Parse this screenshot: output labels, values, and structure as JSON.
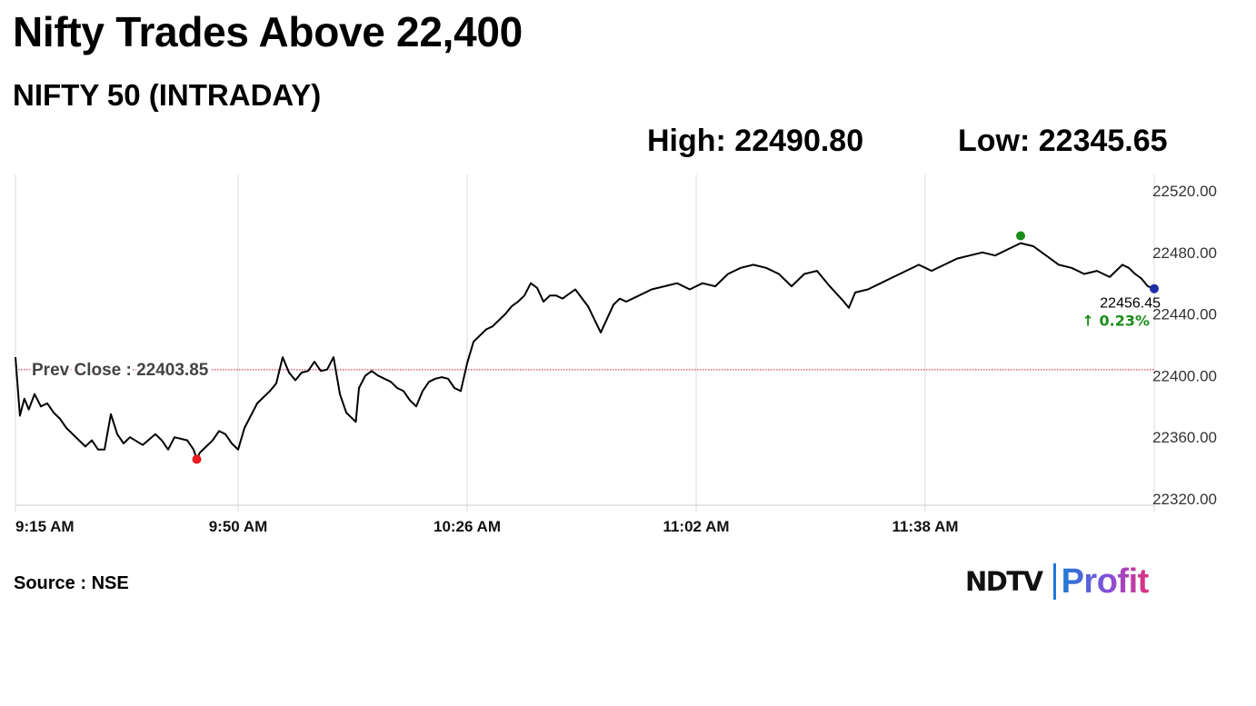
{
  "header": {
    "headline": "Nifty Trades Above 22,400",
    "subtitle": "NIFTY 50 (INTRADAY)",
    "high_text": "High: 22490.80",
    "low_text": "Low: 22345.65"
  },
  "footer": {
    "source_text": "Source : NSE",
    "brand_primary": "NDTV",
    "brand_secondary": "Profit"
  },
  "colors": {
    "line": "#000000",
    "high_marker": "#1a8c1a",
    "low_marker": "#e81c1c",
    "last_marker": "#1f2ca8",
    "change_text": "#1a8c1a",
    "prev_close_line": "#c8102e",
    "grid": "#dddddd"
  },
  "chart_data": {
    "type": "line",
    "title": "NIFTY 50 (INTRADAY)",
    "xlabel": "",
    "ylabel": "",
    "x_ticks": [
      "9:15 AM",
      "9:50 AM",
      "10:26 AM",
      "11:02 AM",
      "11:38 AM"
    ],
    "x_tick_minutes": [
      0,
      35,
      71,
      107,
      143
    ],
    "x_range_minutes": [
      0,
      179
    ],
    "y_ticks": [
      "22320.00",
      "22360.00",
      "22400.00",
      "22440.00",
      "22480.00",
      "22520.00"
    ],
    "ylim": [
      22320,
      22520
    ],
    "grid": "x-only",
    "prev_close": 22403.85,
    "prev_close_label": "Prev Close : 22403.85",
    "high": {
      "minute": 158,
      "value": 22490.8
    },
    "low": {
      "minute": 28.5,
      "value": 22345.65
    },
    "last": {
      "minute": 179,
      "value": 22456.45,
      "label": "22456.45",
      "change_label": "↑ 0.23%"
    },
    "series": [
      {
        "x": [
          0,
          0.7,
          1.4,
          2.1,
          3,
          4,
          5,
          6,
          7,
          8,
          9,
          10,
          11,
          12,
          13,
          14,
          15,
          16,
          17,
          18,
          20,
          22,
          23,
          24,
          25,
          27,
          28,
          28.5,
          29,
          30,
          31,
          32,
          33,
          34,
          35,
          36,
          37,
          38,
          39,
          40,
          41,
          42,
          43,
          44,
          45,
          46,
          47,
          48,
          49,
          50,
          51,
          52,
          53,
          53.5,
          54,
          55,
          56,
          57,
          58,
          59,
          60,
          61,
          62,
          63,
          64,
          65,
          66,
          67,
          68,
          69,
          70,
          71,
          72,
          73,
          74,
          75,
          76,
          77,
          78,
          79,
          80,
          81,
          82,
          83,
          84,
          85,
          86,
          88,
          90,
          92,
          94,
          95,
          96,
          98,
          100,
          102,
          104,
          106,
          108,
          110,
          112,
          114,
          116,
          118,
          120,
          122,
          124,
          126,
          128,
          130,
          131,
          132,
          134,
          136,
          138,
          140,
          142,
          144,
          146,
          148,
          150,
          152,
          154,
          156,
          158,
          160,
          162,
          164,
          166,
          168,
          170,
          172,
          174,
          175,
          176,
          177,
          178,
          179
        ],
        "y": [
          22412,
          22374,
          22385,
          22378,
          22388,
          22380,
          22382,
          22376,
          22372,
          22366,
          22362,
          22358,
          22354,
          22358,
          22352,
          22352,
          22375,
          22362,
          22356,
          22360,
          22355,
          22362,
          22358,
          22352,
          22360,
          22358,
          22352,
          22345.65,
          22350,
          22354,
          22358,
          22364,
          22362,
          22356,
          22352,
          22366,
          22374,
          22382,
          22386,
          22390,
          22395,
          22412,
          22402,
          22397,
          22402,
          22403,
          22409,
          22403,
          22404,
          22412,
          22388,
          22376,
          22372,
          22370,
          22392,
          22400,
          22403,
          22400,
          22398,
          22396,
          22392,
          22390,
          22384,
          22380,
          22390,
          22396,
          22398,
          22399,
          22398,
          22392,
          22390,
          22408,
          22422,
          22426,
          22430,
          22432,
          22436,
          22440,
          22445,
          22448,
          22452,
          22460,
          22457,
          22448,
          22452,
          22452,
          22450,
          22456,
          22445,
          22428,
          22446,
          22450,
          22448,
          22452,
          22456,
          22458,
          22460,
          22456,
          22460,
          22458,
          22466,
          22470,
          22472,
          22470,
          22466,
          22458,
          22466,
          22468,
          22458,
          22449,
          22444,
          22454,
          22456,
          22460,
          22464,
          22468,
          22472,
          22468,
          22472,
          22476,
          22478,
          22480,
          22478,
          22482,
          22486,
          22484,
          22478,
          22472,
          22470,
          22466,
          22468,
          22464,
          22472,
          22470,
          22466,
          22463,
          22458,
          22456.45
        ]
      }
    ]
  }
}
